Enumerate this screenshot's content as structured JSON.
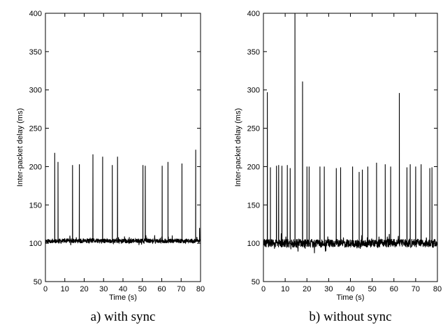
{
  "chart_data": [
    {
      "type": "line",
      "caption": "a) with sync",
      "xlabel": "Time (s)",
      "ylabel": "Inter-packet delay (ms)",
      "xlim": [
        0,
        80
      ],
      "ylim": [
        50,
        400
      ],
      "xticks": [
        0,
        10,
        20,
        30,
        40,
        50,
        60,
        70,
        80
      ],
      "yticks": [
        50,
        100,
        150,
        200,
        250,
        300,
        350,
        400
      ],
      "grid": false,
      "series": [
        {
          "baseline_ms": 103,
          "spikes": [
            {
              "t": 4.8,
              "ms": 218
            },
            {
              "t": 6.5,
              "ms": 206
            },
            {
              "t": 14.0,
              "ms": 202
            },
            {
              "t": 17.5,
              "ms": 203
            },
            {
              "t": 24.5,
              "ms": 216
            },
            {
              "t": 29.5,
              "ms": 213
            },
            {
              "t": 34.5,
              "ms": 202
            },
            {
              "t": 37.2,
              "ms": 213
            },
            {
              "t": 50.3,
              "ms": 202
            },
            {
              "t": 51.5,
              "ms": 201
            },
            {
              "t": 60.2,
              "ms": 201
            },
            {
              "t": 63.2,
              "ms": 206
            },
            {
              "t": 70.4,
              "ms": 204
            },
            {
              "t": 77.5,
              "ms": 222
            },
            {
              "t": 79.5,
              "ms": 120
            }
          ]
        }
      ]
    },
    {
      "type": "line",
      "caption": "b) without sync",
      "xlabel": "Time (s)",
      "ylabel": "Inter-packet delay (ms)",
      "xlim": [
        0,
        80
      ],
      "ylim": [
        50,
        400
      ],
      "xticks": [
        0,
        10,
        20,
        30,
        40,
        50,
        60,
        70,
        80
      ],
      "yticks": [
        50,
        100,
        150,
        200,
        250,
        300,
        350,
        400
      ],
      "grid": false,
      "series": [
        {
          "baseline_ms": 100,
          "spikes": [
            {
              "t": 1.8,
              "ms": 297
            },
            {
              "t": 3.2,
              "ms": 199
            },
            {
              "t": 6.0,
              "ms": 201
            },
            {
              "t": 7.0,
              "ms": 202
            },
            {
              "t": 8.5,
              "ms": 201
            },
            {
              "t": 11.0,
              "ms": 202
            },
            {
              "t": 12.3,
              "ms": 198
            },
            {
              "t": 14.5,
              "ms": 400
            },
            {
              "t": 18.0,
              "ms": 311
            },
            {
              "t": 20.0,
              "ms": 200
            },
            {
              "t": 21.0,
              "ms": 200
            },
            {
              "t": 26.0,
              "ms": 200
            },
            {
              "t": 28.0,
              "ms": 200
            },
            {
              "t": 33.5,
              "ms": 198
            },
            {
              "t": 35.5,
              "ms": 199
            },
            {
              "t": 41.0,
              "ms": 200
            },
            {
              "t": 44.0,
              "ms": 193
            },
            {
              "t": 45.5,
              "ms": 196
            },
            {
              "t": 48.0,
              "ms": 200
            },
            {
              "t": 52.0,
              "ms": 205
            },
            {
              "t": 56.0,
              "ms": 203
            },
            {
              "t": 58.5,
              "ms": 200
            },
            {
              "t": 62.5,
              "ms": 296
            },
            {
              "t": 66.0,
              "ms": 199
            },
            {
              "t": 67.5,
              "ms": 203
            },
            {
              "t": 70.0,
              "ms": 200
            },
            {
              "t": 72.5,
              "ms": 203
            },
            {
              "t": 76.5,
              "ms": 198
            },
            {
              "t": 77.5,
              "ms": 199
            }
          ]
        }
      ]
    }
  ]
}
